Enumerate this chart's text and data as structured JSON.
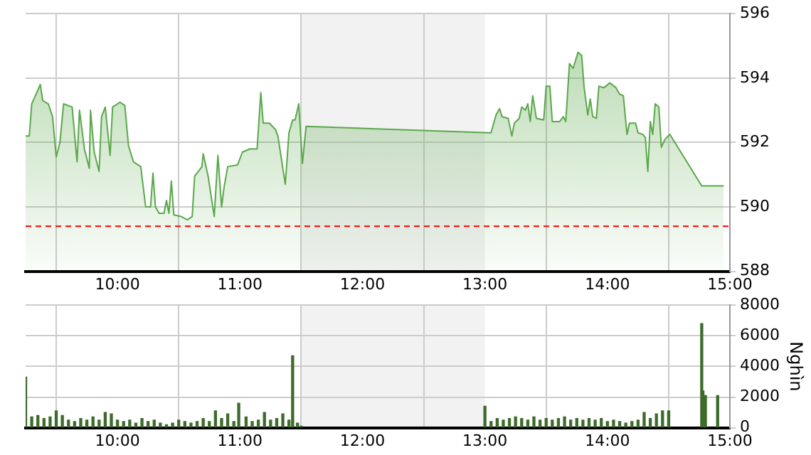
{
  "chart_data": [
    {
      "type": "area",
      "x": [
        9.25,
        9.28,
        9.3,
        9.37,
        9.39,
        9.435,
        9.47,
        9.5,
        9.53,
        9.56,
        9.63,
        9.67,
        9.69,
        9.73,
        9.77,
        9.78,
        9.81,
        9.85,
        9.87,
        9.9,
        9.94,
        9.96,
        10.02,
        10.06,
        10.09,
        10.13,
        10.19,
        10.23,
        10.27,
        10.29,
        10.31,
        10.34,
        10.38,
        10.4,
        10.42,
        10.44,
        10.46,
        10.52,
        10.57,
        10.61,
        10.63,
        10.69,
        10.7,
        10.74,
        10.79,
        10.82,
        10.85,
        10.87,
        10.9,
        10.98,
        11.02,
        11.08,
        11.14,
        11.17,
        11.19,
        11.24,
        11.29,
        11.31,
        11.37,
        11.4,
        11.43,
        11.45,
        11.48,
        11.51,
        11.54,
        13.03,
        13.05,
        13.09,
        13.12,
        13.14,
        13.19,
        13.22,
        13.24,
        13.28,
        13.3,
        13.33,
        13.35,
        13.37,
        13.39,
        13.42,
        13.48,
        13.5,
        13.53,
        13.55,
        13.61,
        13.64,
        13.66,
        13.69,
        13.72,
        13.76,
        13.79,
        13.81,
        13.84,
        13.86,
        13.88,
        13.91,
        13.93,
        13.97,
        14.02,
        14.07,
        14.1,
        14.13,
        14.16,
        14.18,
        14.23,
        14.25,
        14.29,
        14.31,
        14.33,
        14.35,
        14.37,
        14.39,
        14.42,
        14.44,
        14.47,
        14.51,
        14.77,
        14.95
      ],
      "series": [
        {
          "color": "#5aa84a",
          "values": [
            592.2,
            592.2,
            593.2,
            593.8,
            593.3,
            593.2,
            592.8,
            591.55,
            592.0,
            593.2,
            593.1,
            591.4,
            593.0,
            591.8,
            591.2,
            593.0,
            591.7,
            591.1,
            592.8,
            593.1,
            591.6,
            593.1,
            593.25,
            593.15,
            591.9,
            591.4,
            591.25,
            590.0,
            590.0,
            591.05,
            590.0,
            589.8,
            589.8,
            590.2,
            589.8,
            590.8,
            589.75,
            589.7,
            589.6,
            589.7,
            590.95,
            591.25,
            591.65,
            590.95,
            589.7,
            591.6,
            590.0,
            590.6,
            591.25,
            591.3,
            591.7,
            591.8,
            591.8,
            593.55,
            592.6,
            592.6,
            592.4,
            592.2,
            590.7,
            592.3,
            592.7,
            592.7,
            593.2,
            591.35,
            592.5,
            592.3,
            592.3,
            592.85,
            593.05,
            592.8,
            592.75,
            592.2,
            592.6,
            592.75,
            593.1,
            593.0,
            593.2,
            592.65,
            593.45,
            592.75,
            592.7,
            593.75,
            593.75,
            592.65,
            592.65,
            592.8,
            592.65,
            594.45,
            594.3,
            594.8,
            594.7,
            593.7,
            592.85,
            593.35,
            592.8,
            592.75,
            593.75,
            593.7,
            593.85,
            593.7,
            593.5,
            593.45,
            592.25,
            592.6,
            592.6,
            592.3,
            592.25,
            592.15,
            591.1,
            592.65,
            592.25,
            593.2,
            593.1,
            591.85,
            592.1,
            592.25,
            590.65,
            590.65
          ]
        }
      ],
      "xlim": [
        9.25,
        15
      ],
      "xticks": [
        {
          "value": 10,
          "label": "10:00"
        },
        {
          "value": 11,
          "label": "11:00"
        },
        {
          "value": 12,
          "label": "12:00"
        },
        {
          "value": 13,
          "label": "13:00"
        },
        {
          "value": 14,
          "label": "14:00"
        },
        {
          "value": 15,
          "label": "15:00"
        }
      ],
      "ylim": [
        588,
        596
      ],
      "yticks": [
        588,
        590,
        592,
        594,
        596
      ],
      "grid": true,
      "ref_lines": [
        {
          "axis": "y",
          "value": 589.4,
          "color": "#ff0000",
          "line_style": "dashed"
        }
      ],
      "bands": [
        {
          "axis": "x",
          "from": 11.5,
          "to": 13,
          "color": "#f2f2f2"
        }
      ]
    },
    {
      "type": "bar",
      "x": [
        9.25,
        9.3,
        9.35,
        9.4,
        9.45,
        9.5,
        9.55,
        9.6,
        9.65,
        9.7,
        9.75,
        9.8,
        9.85,
        9.9,
        9.95,
        10.0,
        10.05,
        10.1,
        10.15,
        10.2,
        10.25,
        10.3,
        10.35,
        10.4,
        10.45,
        10.5,
        10.55,
        10.6,
        10.65,
        10.7,
        10.75,
        10.8,
        10.85,
        10.9,
        10.95,
        10.99,
        11.05,
        11.1,
        11.15,
        11.2,
        11.25,
        11.3,
        11.35,
        11.4,
        11.43,
        11.47,
        11.5,
        13.0,
        13.05,
        13.1,
        13.15,
        13.2,
        13.25,
        13.3,
        13.35,
        13.4,
        13.45,
        13.5,
        13.55,
        13.6,
        13.65,
        13.7,
        13.75,
        13.8,
        13.85,
        13.9,
        13.95,
        14.0,
        14.05,
        14.1,
        14.15,
        14.2,
        14.25,
        14.3,
        14.35,
        14.4,
        14.45,
        14.5,
        14.77,
        14.78,
        14.8,
        14.9
      ],
      "values": [
        3300,
        700,
        800,
        600,
        700,
        1100,
        800,
        500,
        400,
        600,
        500,
        700,
        500,
        1000,
        900,
        500,
        400,
        500,
        300,
        600,
        400,
        500,
        300,
        200,
        300,
        500,
        400,
        300,
        400,
        600,
        400,
        1100,
        600,
        900,
        400,
        1600,
        700,
        400,
        500,
        1000,
        500,
        600,
        900,
        500,
        4700,
        300,
        100,
        1400,
        400,
        600,
        500,
        600,
        700,
        600,
        500,
        700,
        500,
        600,
        500,
        600,
        700,
        500,
        600,
        500,
        600,
        500,
        600,
        400,
        500,
        400,
        300,
        400,
        500,
        1000,
        600,
        900,
        1100,
        1100,
        6800,
        2400,
        2100,
        2100
      ],
      "color": "#3d6b2a",
      "ylabel": "Nghìn",
      "xlim": [
        9.25,
        15
      ],
      "xticks": [
        {
          "value": 10,
          "label": "10:00"
        },
        {
          "value": 11,
          "label": "11:00"
        },
        {
          "value": 12,
          "label": "12:00"
        },
        {
          "value": 13,
          "label": "13:00"
        },
        {
          "value": 14,
          "label": "14:00"
        },
        {
          "value": 15,
          "label": "15:00"
        }
      ],
      "ylim": [
        0,
        8000
      ],
      "yticks": [
        0,
        2000,
        4000,
        6000,
        8000
      ],
      "grid": true,
      "bands": [
        {
          "axis": "x",
          "from": 11.5,
          "to": 13,
          "color": "#f2f2f2"
        }
      ]
    }
  ]
}
